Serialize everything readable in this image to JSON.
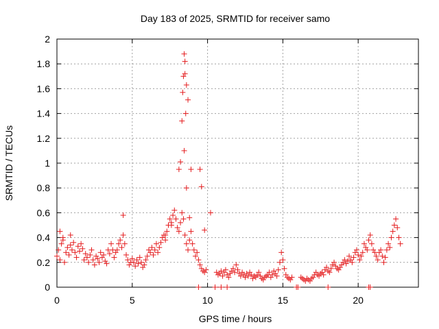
{
  "chart_data": {
    "type": "scatter",
    "title": "Day 183 of 2025, SRMTID for receiver samo",
    "xlabel": "GPS time / hours",
    "ylabel": "SRMTID / TECUs",
    "xlim": [
      0,
      24
    ],
    "ylim": [
      0,
      2
    ],
    "xticks": [
      0,
      5,
      10,
      15,
      20
    ],
    "xtick_labels": [
      "0",
      "5",
      "10",
      "15",
      "20"
    ],
    "yticks": [
      0,
      0.2,
      0.4,
      0.6,
      0.8,
      1,
      1.2,
      1.4,
      1.6,
      1.8,
      2
    ],
    "ytick_labels": [
      "0",
      "0.2",
      "0.4",
      "0.6",
      "0.8",
      "1",
      "1.2",
      "1.4",
      "1.6",
      "1.8",
      "2"
    ],
    "grid": true,
    "marker": "+",
    "marker_color": "#e41a1c",
    "series": [
      {
        "name": "SRMTID",
        "x": [
          0.0,
          0.1,
          0.2,
          0.3,
          0.4,
          0.5,
          0.6,
          0.7,
          0.8,
          0.9,
          1.0,
          1.1,
          1.2,
          1.3,
          1.4,
          1.5,
          1.6,
          1.7,
          1.8,
          1.9,
          2.0,
          2.1,
          2.2,
          2.3,
          2.4,
          2.5,
          2.6,
          2.7,
          2.8,
          2.9,
          3.0,
          3.1,
          3.2,
          3.3,
          3.4,
          3.5,
          3.6,
          3.7,
          3.8,
          3.9,
          4.0,
          4.1,
          4.2,
          4.3,
          4.4,
          4.5,
          4.6,
          4.7,
          4.8,
          4.9,
          5.0,
          5.1,
          5.2,
          5.3,
          5.4,
          5.5,
          5.6,
          5.7,
          5.8,
          5.9,
          6.0,
          6.1,
          6.2,
          6.3,
          6.4,
          6.5,
          6.6,
          6.7,
          6.8,
          6.9,
          7.0,
          7.1,
          7.2,
          7.3,
          7.4,
          7.5,
          7.6,
          7.7,
          7.8,
          7.9,
          8.0,
          8.1,
          8.2,
          8.3,
          8.4,
          8.5,
          8.6,
          8.7,
          8.8,
          8.9,
          9.0,
          9.1,
          9.2,
          9.3,
          9.4,
          9.5,
          9.6,
          9.7,
          9.8,
          9.9,
          10.6,
          10.7,
          10.8,
          10.9,
          11.0,
          11.1,
          11.2,
          11.3,
          11.4,
          11.5,
          11.6,
          11.7,
          11.8,
          11.9,
          12.0,
          12.1,
          12.2,
          12.3,
          12.4,
          12.5,
          12.6,
          12.7,
          12.8,
          12.9,
          13.0,
          13.1,
          13.2,
          13.3,
          13.4,
          13.5,
          13.6,
          13.7,
          13.8,
          13.9,
          14.0,
          14.1,
          14.2,
          14.3,
          14.4,
          14.5,
          14.6,
          14.7,
          14.8,
          14.9,
          15.0,
          15.1,
          15.2,
          15.3,
          15.4,
          15.5,
          15.6,
          16.2,
          16.3,
          16.4,
          16.5,
          16.6,
          16.7,
          16.8,
          16.9,
          17.0,
          17.1,
          17.2,
          17.3,
          17.4,
          17.5,
          17.6,
          17.7,
          17.8,
          17.9,
          18.0,
          18.1,
          18.2,
          18.3,
          18.4,
          18.5,
          18.6,
          18.7,
          18.8,
          18.9,
          19.0,
          19.1,
          19.2,
          19.3,
          19.4,
          19.5,
          19.6,
          19.7,
          19.8,
          19.9,
          20.0,
          20.1,
          20.2,
          20.3,
          20.4,
          20.5,
          20.6,
          20.7,
          20.8,
          20.9,
          21.0,
          21.1,
          21.2,
          21.3,
          21.4,
          21.5,
          21.6,
          21.7,
          21.8,
          21.9,
          22.0,
          22.1,
          22.2,
          22.3,
          22.4,
          22.5,
          22.6,
          22.7,
          22.8,
          8.2,
          8.3,
          8.35,
          8.4,
          8.45,
          8.5,
          8.55,
          8.6,
          8.7,
          8.45,
          8.5,
          8.1,
          8.6,
          8.9,
          9.5,
          9.6,
          9.8,
          0.2,
          0.4,
          0.9,
          4.4,
          7.2,
          7.6,
          8.8,
          9.4,
          10.2,
          10.5,
          10.9,
          11.3,
          15.9,
          16.0,
          18.0,
          20.7,
          20.8
        ],
        "y": [
          0.25,
          0.3,
          0.22,
          0.35,
          0.38,
          0.2,
          0.28,
          0.32,
          0.26,
          0.34,
          0.3,
          0.36,
          0.28,
          0.24,
          0.33,
          0.29,
          0.35,
          0.31,
          0.22,
          0.27,
          0.24,
          0.2,
          0.26,
          0.3,
          0.22,
          0.18,
          0.25,
          0.23,
          0.2,
          0.28,
          0.24,
          0.26,
          0.21,
          0.19,
          0.3,
          0.27,
          0.35,
          0.3,
          0.24,
          0.28,
          0.3,
          0.35,
          0.38,
          0.32,
          0.42,
          0.35,
          0.26,
          0.22,
          0.18,
          0.2,
          0.23,
          0.2,
          0.17,
          0.22,
          0.19,
          0.24,
          0.2,
          0.16,
          0.18,
          0.22,
          0.25,
          0.3,
          0.28,
          0.32,
          0.26,
          0.3,
          0.35,
          0.28,
          0.32,
          0.36,
          0.4,
          0.42,
          0.38,
          0.45,
          0.5,
          0.55,
          0.52,
          0.58,
          0.62,
          0.55,
          0.48,
          0.45,
          0.52,
          0.6,
          0.55,
          0.42,
          0.35,
          0.3,
          0.38,
          0.45,
          0.35,
          0.3,
          0.25,
          0.28,
          0.22,
          0.18,
          0.15,
          0.13,
          0.12,
          0.14,
          0.12,
          0.1,
          0.11,
          0.13,
          0.09,
          0.12,
          0.14,
          0.1,
          0.08,
          0.11,
          0.13,
          0.15,
          0.12,
          0.18,
          0.14,
          0.11,
          0.09,
          0.12,
          0.1,
          0.08,
          0.11,
          0.09,
          0.12,
          0.1,
          0.07,
          0.09,
          0.08,
          0.1,
          0.12,
          0.09,
          0.07,
          0.06,
          0.08,
          0.09,
          0.1,
          0.12,
          0.08,
          0.1,
          0.13,
          0.11,
          0.09,
          0.14,
          0.2,
          0.28,
          0.22,
          0.15,
          0.1,
          0.08,
          0.07,
          0.06,
          0.08,
          0.08,
          0.07,
          0.06,
          0.05,
          0.07,
          0.06,
          0.05,
          0.07,
          0.08,
          0.1,
          0.12,
          0.1,
          0.09,
          0.11,
          0.12,
          0.1,
          0.14,
          0.16,
          0.13,
          0.12,
          0.15,
          0.18,
          0.2,
          0.17,
          0.15,
          0.14,
          0.16,
          0.18,
          0.2,
          0.22,
          0.19,
          0.21,
          0.25,
          0.22,
          0.2,
          0.24,
          0.28,
          0.3,
          0.26,
          0.22,
          0.25,
          0.28,
          0.35,
          0.32,
          0.3,
          0.38,
          0.42,
          0.35,
          0.3,
          0.28,
          0.25,
          0.22,
          0.28,
          0.3,
          0.25,
          0.2,
          0.24,
          0.3,
          0.35,
          0.32,
          0.4,
          0.45,
          0.5,
          0.55,
          0.48,
          0.4,
          0.35,
          1.01,
          1.34,
          1.57,
          1.7,
          1.88,
          1.82,
          1.4,
          1.63,
          1.51,
          1.1,
          1.72,
          0.95,
          0.8,
          0.95,
          0.95,
          0.81,
          0.46,
          0.45,
          0.4,
          0.42,
          0.58,
          0.42,
          0.5,
          0.56,
          0.0,
          0.6,
          0.0,
          0.0,
          0.0,
          0.0,
          0.0,
          0.0,
          0.0,
          0.0
        ]
      }
    ]
  }
}
